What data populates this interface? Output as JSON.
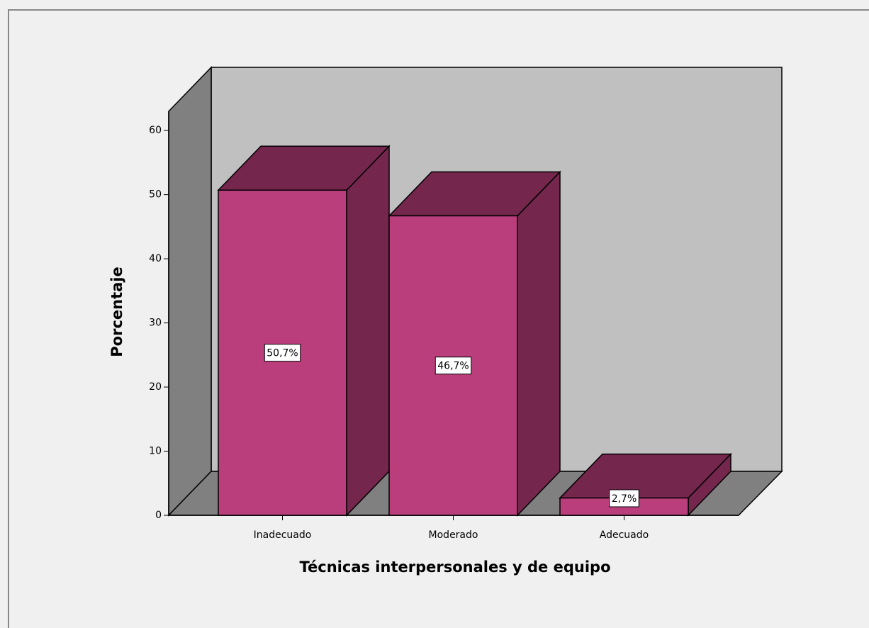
{
  "chart_data": {
    "type": "bar3d",
    "categories": [
      "Inadecuado",
      "Moderado",
      "Adecuado"
    ],
    "values": [
      50.7,
      46.7,
      2.7
    ],
    "value_labels": [
      "50,7%",
      "46,7%",
      "2,7%"
    ],
    "x_label": "Técnicas interpersonales y de equipo",
    "y_label": "Porcentaje",
    "ylim": [
      0,
      63
    ],
    "yticks": [
      0,
      10,
      20,
      30,
      40,
      50,
      60
    ],
    "color": "#bb3e7c",
    "shade_color": "#74264c"
  }
}
